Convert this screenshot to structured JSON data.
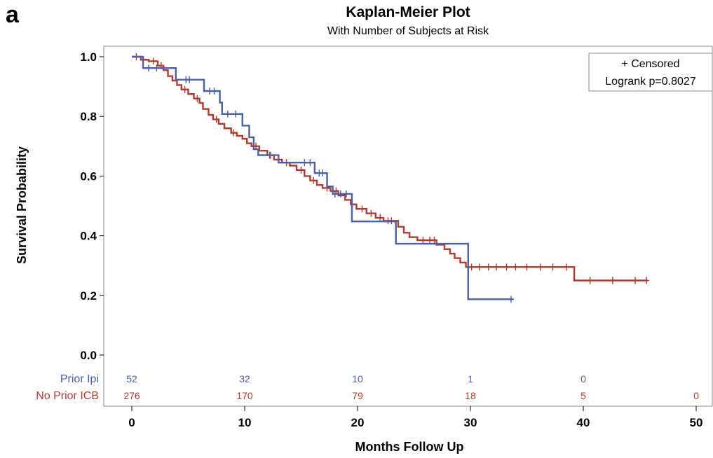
{
  "panel_letter": "a",
  "chart_data": {
    "type": "line",
    "title": "Kaplan-Meier Plot",
    "subtitle": "With Number of Subjects at Risk",
    "xlabel": "Months Follow Up",
    "ylabel": "Survival Probability",
    "xlim": [
      0,
      50
    ],
    "ylim": [
      0,
      1.0
    ],
    "x_ticks": [
      "0",
      "10",
      "20",
      "30",
      "40",
      "50"
    ],
    "x_tick_values": [
      0,
      10,
      20,
      30,
      40,
      50
    ],
    "y_ticks": [
      "0.0",
      "0.2",
      "0.4",
      "0.6",
      "0.8",
      "1.0"
    ],
    "y_tick_values": [
      0,
      0.2,
      0.4,
      0.6,
      0.8,
      1.0
    ],
    "legend": {
      "placement": "top-right",
      "lines": [
        "+ Censored",
        "Logrank p=0.8027"
      ]
    },
    "series": [
      {
        "name": "Prior Ipi",
        "color": "#4a5fa8",
        "steps": [
          [
            0,
            1.0
          ],
          [
            1.0,
            0.962
          ],
          [
            3.9,
            0.923
          ],
          [
            6.4,
            0.885
          ],
          [
            7.8,
            0.846
          ],
          [
            8.0,
            0.808
          ],
          [
            9.8,
            0.769
          ],
          [
            10.4,
            0.73
          ],
          [
            10.8,
            0.69
          ],
          [
            11.2,
            0.67
          ],
          [
            13.0,
            0.645
          ],
          [
            16.2,
            0.61
          ],
          [
            17.3,
            0.565
          ],
          [
            17.8,
            0.54
          ],
          [
            19.5,
            0.448
          ],
          [
            23.4,
            0.373
          ],
          [
            29.8,
            0.187
          ]
        ],
        "censor_times": [
          1.5,
          2.2,
          4.8,
          5.1,
          6.9,
          7.3,
          8.5,
          9.2,
          12.2,
          15.3,
          15.8,
          16.6,
          16.9,
          18.0,
          18.5,
          19.0,
          33.6
        ],
        "end_time": 33.8,
        "at_risk": [
          "52",
          "32",
          "10",
          "1",
          "0"
        ],
        "at_risk_times": [
          0,
          10,
          20,
          30,
          40
        ]
      },
      {
        "name": "No Prior ICB",
        "color": "#b03a2e",
        "steps": [
          [
            0,
            1.0
          ],
          [
            0.8,
            0.99
          ],
          [
            1.5,
            0.985
          ],
          [
            2.3,
            0.97
          ],
          [
            2.8,
            0.955
          ],
          [
            3.2,
            0.935
          ],
          [
            3.6,
            0.92
          ],
          [
            4.0,
            0.905
          ],
          [
            4.4,
            0.89
          ],
          [
            5.0,
            0.875
          ],
          [
            5.5,
            0.86
          ],
          [
            6.0,
            0.845
          ],
          [
            6.3,
            0.825
          ],
          [
            6.8,
            0.805
          ],
          [
            7.2,
            0.79
          ],
          [
            7.7,
            0.775
          ],
          [
            8.2,
            0.76
          ],
          [
            8.8,
            0.745
          ],
          [
            9.3,
            0.735
          ],
          [
            9.8,
            0.725
          ],
          [
            10.2,
            0.71
          ],
          [
            10.6,
            0.7
          ],
          [
            11.3,
            0.685
          ],
          [
            12.0,
            0.67
          ],
          [
            12.6,
            0.655
          ],
          [
            13.3,
            0.645
          ],
          [
            14.0,
            0.635
          ],
          [
            14.6,
            0.62
          ],
          [
            15.3,
            0.6
          ],
          [
            15.8,
            0.585
          ],
          [
            16.4,
            0.57
          ],
          [
            16.9,
            0.56
          ],
          [
            17.6,
            0.55
          ],
          [
            18.3,
            0.535
          ],
          [
            18.9,
            0.52
          ],
          [
            19.4,
            0.505
          ],
          [
            19.9,
            0.49
          ],
          [
            20.8,
            0.475
          ],
          [
            21.6,
            0.46
          ],
          [
            22.3,
            0.45
          ],
          [
            23.6,
            0.43
          ],
          [
            24.1,
            0.41
          ],
          [
            24.6,
            0.395
          ],
          [
            25.3,
            0.385
          ],
          [
            27.0,
            0.37
          ],
          [
            27.7,
            0.355
          ],
          [
            28.2,
            0.34
          ],
          [
            28.6,
            0.325
          ],
          [
            29.1,
            0.31
          ],
          [
            29.6,
            0.295
          ],
          [
            39.2,
            0.25
          ]
        ],
        "censor_times": [
          0.4,
          1.0,
          1.9,
          2.6,
          4.7,
          5.8,
          7.5,
          9.0,
          11.0,
          12.3,
          13.7,
          15.0,
          16.1,
          17.3,
          18.1,
          20.4,
          21.2,
          22.0,
          22.7,
          23.0,
          25.8,
          26.4,
          26.8,
          30.1,
          30.8,
          31.6,
          32.3,
          33.2,
          34.0,
          35.0,
          36.2,
          37.3,
          38.5,
          40.6,
          42.6,
          44.6,
          45.6
        ],
        "end_time": 45.7,
        "at_risk": [
          "276",
          "170",
          "79",
          "18",
          "5",
          "0"
        ],
        "at_risk_times": [
          0,
          10,
          20,
          30,
          40,
          50
        ]
      }
    ]
  }
}
